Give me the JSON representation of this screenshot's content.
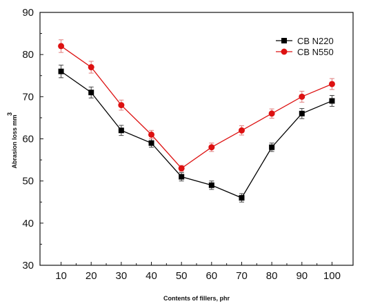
{
  "chart_data": {
    "type": "line",
    "title": "",
    "xlabel": "Contents of fillers, phr",
    "ylabel": "Abrasion loss mm",
    "ylabel_superscript": "3",
    "x": [
      10,
      20,
      30,
      40,
      50,
      60,
      70,
      80,
      90,
      100
    ],
    "xticks": [
      "10",
      "20",
      "30",
      "40",
      "50",
      "60",
      "70",
      "80",
      "90",
      "100"
    ],
    "xlim": [
      3,
      107
    ],
    "ylim": [
      30,
      90
    ],
    "yticks": [
      "30",
      "40",
      "50",
      "60",
      "70",
      "80",
      "90"
    ],
    "grid": false,
    "legend_position": "top-right",
    "series": [
      {
        "name": "CB N220",
        "color": "#000000",
        "marker": "square",
        "values": [
          76,
          71,
          62,
          59,
          51,
          49,
          46,
          58,
          66,
          69
        ],
        "errors": [
          1.5,
          1.3,
          1.2,
          1.0,
          1.0,
          1.0,
          1.0,
          1.0,
          1.2,
          1.3
        ]
      },
      {
        "name": "CB N550",
        "color": "#dd1111",
        "marker": "circle",
        "values": [
          82,
          77,
          68,
          61,
          53,
          58,
          62,
          66,
          70,
          73
        ],
        "errors": [
          1.5,
          1.4,
          1.2,
          1.0,
          0.7,
          1.0,
          1.1,
          1.1,
          1.3,
          1.3
        ]
      }
    ]
  }
}
